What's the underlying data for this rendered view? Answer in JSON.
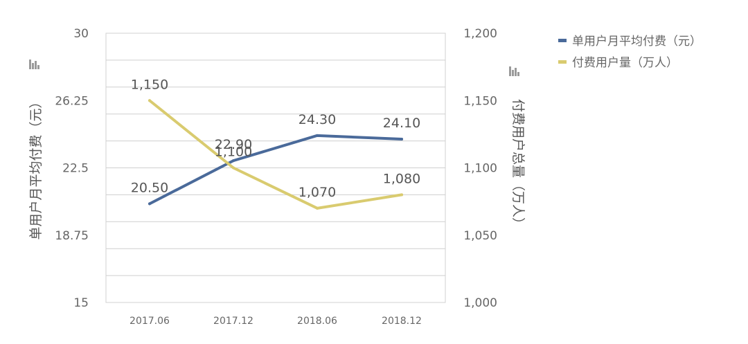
{
  "chart_data": {
    "type": "line",
    "categories": [
      "2017.06",
      "2017.12",
      "2018.06",
      "2018.12"
    ],
    "series": [
      {
        "name": "单用户月平均付费（元）",
        "axis": "left",
        "color": "#4a6a9a",
        "values": [
          20.5,
          22.9,
          24.3,
          24.1
        ],
        "labels": [
          "20.50",
          "22.90",
          "24.30",
          "24.10"
        ]
      },
      {
        "name": "付费用户量（万人）",
        "axis": "right",
        "color": "#d9cb6f",
        "values": [
          1150,
          1100,
          1070,
          1080
        ],
        "labels": [
          "1,150",
          "1,100",
          "1,070",
          "1,080"
        ]
      }
    ],
    "y_left": {
      "label": "单用户月平均付费（元）",
      "range": [
        15,
        30
      ],
      "ticks": [
        "15",
        "18.75",
        "22.5",
        "26.25",
        "30"
      ]
    },
    "y_right": {
      "label": "付费用户总量（万人）",
      "range": [
        1000,
        1200
      ],
      "ticks": [
        "1,000",
        "1,050",
        "1,100",
        "1,150",
        "1,200"
      ]
    },
    "grid": true,
    "legend": "top-right"
  }
}
